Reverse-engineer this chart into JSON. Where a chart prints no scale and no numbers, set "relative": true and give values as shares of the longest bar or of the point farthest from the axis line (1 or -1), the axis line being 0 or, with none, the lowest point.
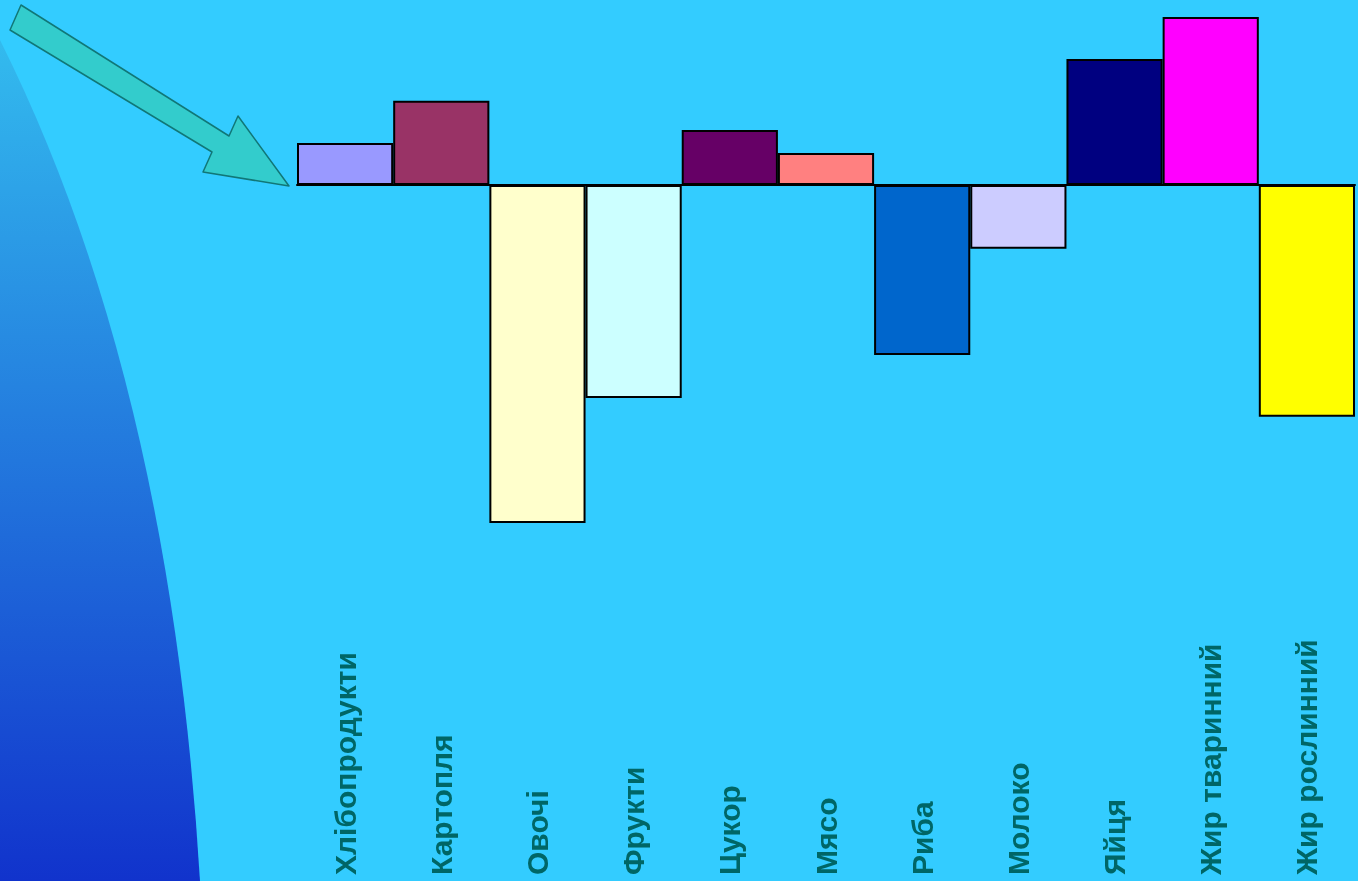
{
  "chart_data": {
    "type": "bar",
    "relative": true,
    "categories": [
      "Хлібопродукти",
      "Картопля",
      "Овочі",
      "Фрукти",
      "Цукор",
      "Мясо",
      "Риба",
      "Молоко",
      "Яйця",
      "Жир тваринний",
      "Жир рослинний"
    ],
    "values": [
      0.124,
      0.249,
      -1,
      -0.63,
      0.163,
      0.095,
      -0.503,
      -0.189,
      0.373,
      0.497,
      -0.686
    ],
    "colors": [
      "#9999ff",
      "#993366",
      "#ffffcc",
      "#ccffff",
      "#660066",
      "#ff8080",
      "#0066cc",
      "#ccccff",
      "#000080",
      "#ff00ff",
      "#ffff00"
    ],
    "grid": false
  }
}
